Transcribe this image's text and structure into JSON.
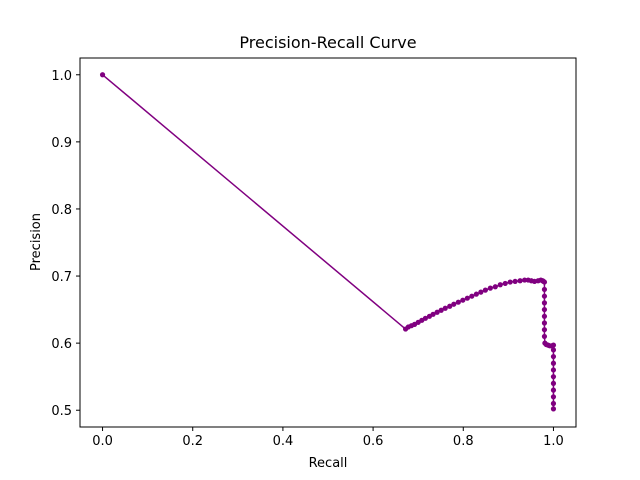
{
  "chart_data": {
    "type": "line",
    "title": "Precision-Recall Curve",
    "xlabel": "Recall",
    "ylabel": "Precision",
    "xlim": [
      -0.05,
      1.05
    ],
    "ylim": [
      0.475,
      1.025
    ],
    "xticks": [
      0.0,
      0.2,
      0.4,
      0.6,
      0.8,
      1.0
    ],
    "xtick_labels": [
      "0.0",
      "0.2",
      "0.4",
      "0.6",
      "0.8",
      "1.0"
    ],
    "yticks": [
      0.5,
      0.6,
      0.7,
      0.8,
      0.9,
      1.0
    ],
    "ytick_labels": [
      "0.5",
      "0.6",
      "0.7",
      "0.8",
      "0.9",
      "1.0"
    ],
    "grid": false,
    "legend": "none",
    "series": [
      {
        "color": "#800080",
        "marker": "circle",
        "points": [
          [
            0.0,
            1.0
          ],
          [
            0.672,
            0.621
          ],
          [
            0.678,
            0.624
          ],
          [
            0.685,
            0.626
          ],
          [
            0.692,
            0.628
          ],
          [
            0.7,
            0.631
          ],
          [
            0.708,
            0.634
          ],
          [
            0.716,
            0.637
          ],
          [
            0.725,
            0.64
          ],
          [
            0.733,
            0.643
          ],
          [
            0.742,
            0.646
          ],
          [
            0.751,
            0.649
          ],
          [
            0.76,
            0.652
          ],
          [
            0.77,
            0.655
          ],
          [
            0.779,
            0.658
          ],
          [
            0.789,
            0.661
          ],
          [
            0.799,
            0.664
          ],
          [
            0.809,
            0.667
          ],
          [
            0.819,
            0.67
          ],
          [
            0.829,
            0.673
          ],
          [
            0.839,
            0.676
          ],
          [
            0.849,
            0.679
          ],
          [
            0.86,
            0.682
          ],
          [
            0.871,
            0.684
          ],
          [
            0.882,
            0.687
          ],
          [
            0.893,
            0.689
          ],
          [
            0.904,
            0.691
          ],
          [
            0.915,
            0.692
          ],
          [
            0.926,
            0.693
          ],
          [
            0.936,
            0.694
          ],
          [
            0.944,
            0.694
          ],
          [
            0.951,
            0.693
          ],
          [
            0.958,
            0.692
          ],
          [
            0.966,
            0.693
          ],
          [
            0.972,
            0.694
          ],
          [
            0.976,
            0.693
          ],
          [
            0.978,
            0.692
          ],
          [
            0.98,
            0.691
          ],
          [
            0.98,
            0.68
          ],
          [
            0.98,
            0.67
          ],
          [
            0.98,
            0.66
          ],
          [
            0.98,
            0.65
          ],
          [
            0.98,
            0.64
          ],
          [
            0.98,
            0.63
          ],
          [
            0.98,
            0.62
          ],
          [
            0.98,
            0.61
          ],
          [
            0.981,
            0.6
          ],
          [
            0.984,
            0.598
          ],
          [
            0.988,
            0.597
          ],
          [
            0.992,
            0.596
          ],
          [
            0.996,
            0.596
          ],
          [
            1.0,
            0.597
          ],
          [
            1.0,
            0.59
          ],
          [
            1.0,
            0.58
          ],
          [
            1.0,
            0.57
          ],
          [
            1.0,
            0.56
          ],
          [
            1.0,
            0.55
          ],
          [
            1.0,
            0.54
          ],
          [
            1.0,
            0.53
          ],
          [
            1.0,
            0.52
          ],
          [
            1.0,
            0.51
          ],
          [
            1.0,
            0.502
          ]
        ]
      }
    ]
  }
}
